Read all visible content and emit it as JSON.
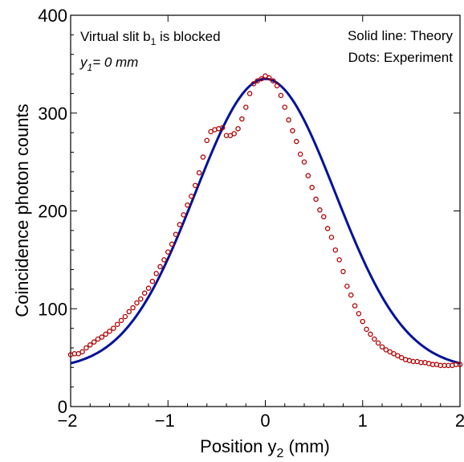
{
  "chart_data": {
    "type": "scatter",
    "xlim": [
      -2,
      2
    ],
    "ylim": [
      0,
      400
    ],
    "x_ticks": [
      -2,
      -1,
      0,
      1,
      2
    ],
    "x_tick_labels": [
      "−2",
      "−1",
      "0",
      "1",
      "2"
    ],
    "y_ticks": [
      0,
      100,
      200,
      300,
      400
    ],
    "y_tick_labels": [
      "0",
      "100",
      "200",
      "300",
      "400"
    ],
    "xlabel": {
      "main": "Position y",
      "sub": "2",
      "unit": " (mm)"
    },
    "ylabel": "Coincidence photon counts",
    "annotations": {
      "slit": {
        "main": "Virtual slit b",
        "sub": "1",
        "rest": " is blocked"
      },
      "y1": {
        "main": "y",
        "sub": "1",
        "rest": "= 0 mm"
      },
      "legend_line1": "Solid line: Theory",
      "legend_line2": "Dots: Experiment"
    },
    "grid": false,
    "theory_curve": {
      "peak": 335,
      "offset": 38,
      "width": 0.72,
      "color": "#00129a"
    },
    "experiment_color": "#b00000",
    "experiment": {
      "x": [
        -2.0,
        -1.96,
        -1.92,
        -1.88,
        -1.84,
        -1.8,
        -1.76,
        -1.72,
        -1.68,
        -1.64,
        -1.6,
        -1.56,
        -1.52,
        -1.48,
        -1.44,
        -1.4,
        -1.36,
        -1.32,
        -1.28,
        -1.24,
        -1.2,
        -1.16,
        -1.12,
        -1.08,
        -1.04,
        -1.0,
        -0.96,
        -0.92,
        -0.88,
        -0.84,
        -0.8,
        -0.76,
        -0.72,
        -0.68,
        -0.64,
        -0.6,
        -0.56,
        -0.52,
        -0.48,
        -0.44,
        -0.4,
        -0.36,
        -0.32,
        -0.28,
        -0.24,
        -0.2,
        -0.16,
        -0.12,
        -0.08,
        -0.04,
        0.0,
        0.04,
        0.08,
        0.12,
        0.16,
        0.2,
        0.24,
        0.28,
        0.32,
        0.36,
        0.4,
        0.44,
        0.48,
        0.52,
        0.56,
        0.6,
        0.64,
        0.68,
        0.72,
        0.76,
        0.8,
        0.84,
        0.88,
        0.92,
        0.96,
        1.0,
        1.04,
        1.08,
        1.12,
        1.16,
        1.2,
        1.24,
        1.28,
        1.32,
        1.36,
        1.4,
        1.44,
        1.48,
        1.52,
        1.56,
        1.6,
        1.64,
        1.68,
        1.72,
        1.76,
        1.8,
        1.84,
        1.88,
        1.92,
        1.96,
        2.0
      ],
      "y": [
        53,
        54,
        54,
        56,
        60,
        63,
        66,
        69,
        71,
        74,
        77,
        80,
        84,
        88,
        92,
        97,
        101,
        106,
        110,
        116,
        121,
        128,
        136,
        143,
        150,
        158,
        166,
        176,
        186,
        196,
        206,
        215,
        226,
        239,
        255,
        272,
        281,
        283,
        284,
        285,
        277,
        277,
        279,
        284,
        294,
        306,
        320,
        330,
        333,
        335,
        338,
        336,
        333,
        328,
        318,
        306,
        293,
        282,
        271,
        258,
        250,
        236,
        224,
        212,
        201,
        194,
        182,
        173,
        160,
        150,
        138,
        123,
        114,
        103,
        95,
        87,
        79,
        74,
        69,
        65,
        61,
        58,
        56,
        54,
        52,
        50,
        48,
        47,
        46,
        46,
        45,
        45,
        44,
        43,
        43,
        42,
        42,
        42,
        42,
        43,
        43
      ]
    }
  }
}
